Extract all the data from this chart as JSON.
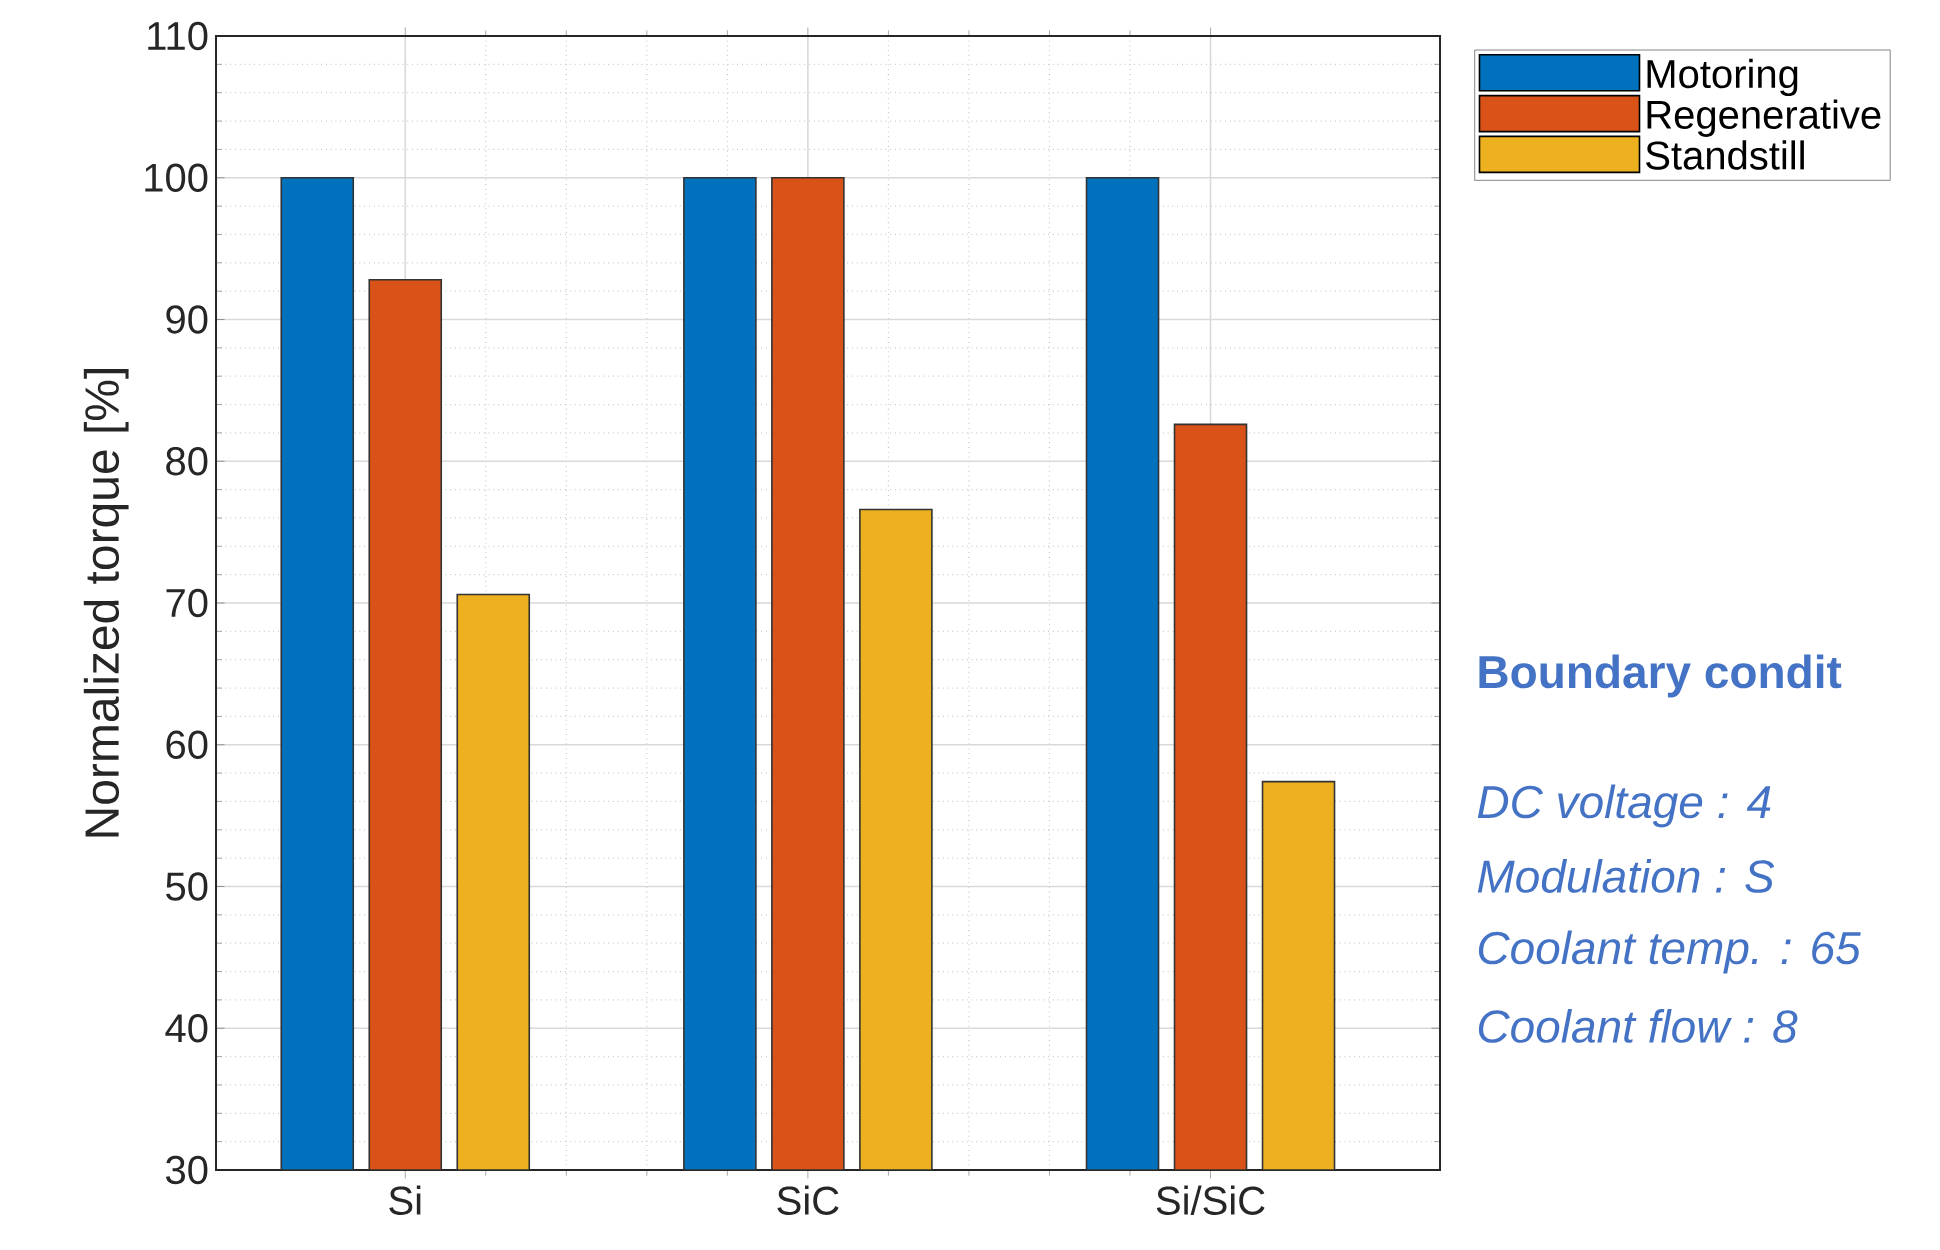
{
  "chart_data": {
    "type": "bar",
    "ylabel": "Normalized torque [%]",
    "categories": [
      "Si",
      "SiC",
      "Si/SiC"
    ],
    "series": [
      {
        "name": "Motoring",
        "color": "#0072bd",
        "values": [
          100,
          100,
          100
        ]
      },
      {
        "name": "Regenerative",
        "color": "#d95319",
        "values": [
          92.8,
          100,
          82.6
        ]
      },
      {
        "name": "Standstill",
        "color": "#edb120",
        "values": [
          70.6,
          76.6,
          57.4
        ]
      }
    ],
    "ylim": [
      30,
      110
    ],
    "yticks": [
      30,
      40,
      50,
      60,
      70,
      80,
      90,
      100,
      110
    ],
    "grid": true,
    "legend": "top right",
    "annotations": [
      "Boundary condit",
      "DC voltage : 4",
      "Modulation : S",
      "Coolant temp. : 65",
      "Coolant flow : 8"
    ]
  }
}
